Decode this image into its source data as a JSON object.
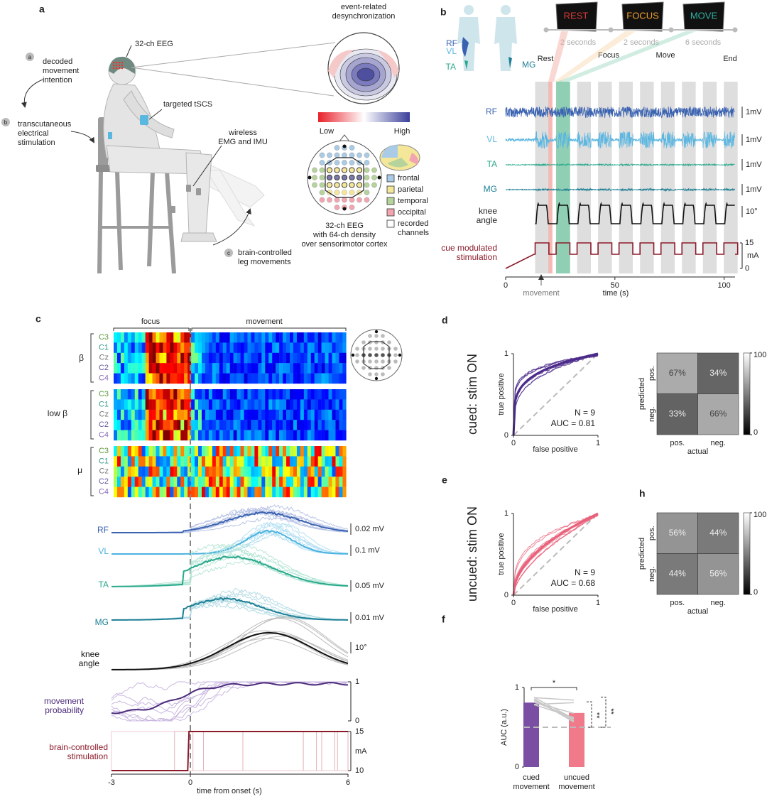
{
  "panel_a": {
    "label": "a",
    "erd_title": "event-related\ndesynchronization",
    "eeg_cap": "32-ch EEG",
    "steps": [
      {
        "marker": "a",
        "text": "decoded\nmovement\nintention"
      },
      {
        "marker": "b",
        "text": "transcutaneous\nelectrical\nstimulation"
      },
      {
        "marker": "c",
        "text": "brain-controlled\nleg movements"
      }
    ],
    "tscs": "targeted tSCS",
    "emg": "wireless\nEMG and IMU",
    "scale": [
      "Low",
      "High"
    ],
    "regions": [
      {
        "name": "frontal",
        "color": "#a9cbe6"
      },
      {
        "name": "parietal",
        "color": "#f5e79a"
      },
      {
        "name": "temporal",
        "color": "#b5d39a"
      },
      {
        "name": "occipital",
        "color": "#f2a5b0"
      },
      {
        "name": "recorded\nchannels",
        "color": "#ffffff"
      }
    ],
    "montage_caption": "32-ch EEG\nwith 64-ch density\nover sensorimotor cortex"
  },
  "panel_b": {
    "label": "b",
    "body_labels": [
      "RF",
      "VL",
      "TA",
      "MG"
    ],
    "screens": [
      {
        "text": "REST",
        "color": "#d83a3a"
      },
      {
        "text": "FOCUS",
        "color": "#f0a030"
      },
      {
        "text": "MOVE",
        "color": "#30b0a0"
      }
    ],
    "durations": [
      "2 seconds",
      "2 seconds",
      "6 seconds"
    ],
    "phases": [
      "Rest",
      "Focus",
      "Move",
      "End"
    ],
    "traces": [
      {
        "name": "RF",
        "color": "#3a62b0",
        "scale": "1mV"
      },
      {
        "name": "VL",
        "color": "#5bb6e0",
        "scale": "1mV"
      },
      {
        "name": "TA",
        "color": "#2aa98c",
        "scale": "1mV"
      },
      {
        "name": "MG",
        "color": "#1d7f95",
        "scale": "1mV"
      },
      {
        "name": "knee\nangle",
        "color": "#111111",
        "scale": "10°"
      }
    ],
    "stimulation": {
      "name": "cue modulated\nstimulation",
      "color": "#8b1a2a",
      "ylim": [
        0,
        15
      ],
      "yticks": [
        0,
        15
      ],
      "unit": "mA"
    },
    "xlim": [
      0,
      105
    ],
    "xticks": [
      0,
      50,
      100
    ],
    "x_label": "time (s)",
    "event": "movement"
  },
  "panel_c": {
    "label": "c",
    "epochs": [
      "focus",
      "movement"
    ],
    "bands": [
      {
        "name": "β",
        "channels": [
          "C3",
          "C1",
          "Cz",
          "C2",
          "C4"
        ]
      },
      {
        "name": "low β",
        "channels": [
          "C3",
          "C1",
          "Cz",
          "C2",
          "C4"
        ]
      },
      {
        "name": "μ",
        "channels": [
          "C3",
          "C1",
          "Cz",
          "C2",
          "C4"
        ]
      }
    ],
    "channel_colors": [
      "#5a9a3a",
      "#3a9a8a",
      "#777777",
      "#6a5aa0",
      "#8a6ab8"
    ],
    "traces": [
      {
        "name": "RF",
        "color": "#3a62b0",
        "scale": "0.02 mV"
      },
      {
        "name": "VL",
        "color": "#4ab2e0",
        "scale": "0.1 mV"
      },
      {
        "name": "TA",
        "color": "#2aa98c",
        "scale": "0.05 mV"
      },
      {
        "name": "MG",
        "color": "#1d7f95",
        "scale": "0.01 mV"
      },
      {
        "name": "knee\nangle",
        "color": "#111111",
        "scale": "10°"
      }
    ],
    "probability": {
      "name": "movement\nprobability",
      "color": "#4b2a7a",
      "ylim": [
        0,
        1
      ],
      "yticks": [
        0,
        1
      ]
    },
    "stimulation": {
      "name": "brain-controlled\nstimulation",
      "color": "#8b1a2a",
      "ylim": [
        10,
        15
      ],
      "yticks": [
        10,
        15
      ],
      "unit": "mA"
    },
    "xlim": [
      -3,
      6
    ],
    "xticks": [
      -3,
      0,
      6
    ],
    "x_label": "time from onset (s)"
  },
  "panel_d": {
    "label": "d",
    "condition": "cued: stim ON",
    "color": "#4b2a8a",
    "ylabel": "true positive",
    "xlabel": "false positive",
    "xlim": [
      0,
      1
    ],
    "ylim": [
      0,
      1
    ],
    "xticks": [
      0,
      1
    ],
    "yticks": [
      0,
      1
    ],
    "n": "N = 9",
    "auc": "AUC = 0.81",
    "matrix": {
      "values": [
        [
          67,
          34
        ],
        [
          33,
          66
        ]
      ],
      "value_labels": [
        [
          "67%",
          "34%"
        ],
        [
          "33%",
          "66%"
        ]
      ],
      "rows_label": "predicted",
      "row_names": [
        "pos.",
        "neg."
      ],
      "cols_label": "actual",
      "col_names": [
        "pos.",
        "neg."
      ],
      "clim": [
        0,
        100
      ],
      "cticks": [
        0,
        100
      ]
    }
  },
  "panel_e": {
    "label": "e",
    "condition": "uncued: stim ON",
    "color": "#e8607a",
    "ylabel": "true positive",
    "xlabel": "false positive",
    "xlim": [
      0,
      1
    ],
    "ylim": [
      0,
      1
    ],
    "xticks": [
      0,
      1
    ],
    "yticks": [
      0,
      1
    ],
    "n": "N = 9",
    "auc": "AUC = 0.68"
  },
  "panel_h": {
    "label": "h",
    "matrix": {
      "values": [
        [
          56,
          44
        ],
        [
          44,
          56
        ]
      ],
      "value_labels": [
        [
          "56%",
          "44%"
        ],
        [
          "44%",
          "56%"
        ]
      ],
      "rows_label": "predicted",
      "row_names": [
        "pos.",
        "neg."
      ],
      "cols_label": "actual",
      "col_names": [
        "pos.",
        "neg."
      ],
      "clim": [
        0,
        100
      ],
      "cticks": [
        0,
        100
      ]
    }
  },
  "panel_f": {
    "label": "f",
    "ylabel": "AUC (a.u.)",
    "ylim": [
      0,
      1
    ],
    "yticks": [
      0,
      1
    ],
    "categories": [
      "cued\nmovement",
      "uncued\nmovement"
    ],
    "values": [
      0.81,
      0.68
    ],
    "colors": [
      "#7a4ea3",
      "#f07a8a"
    ],
    "chance_level": 0.5,
    "significance": [
      "*",
      "**",
      "**"
    ]
  }
}
